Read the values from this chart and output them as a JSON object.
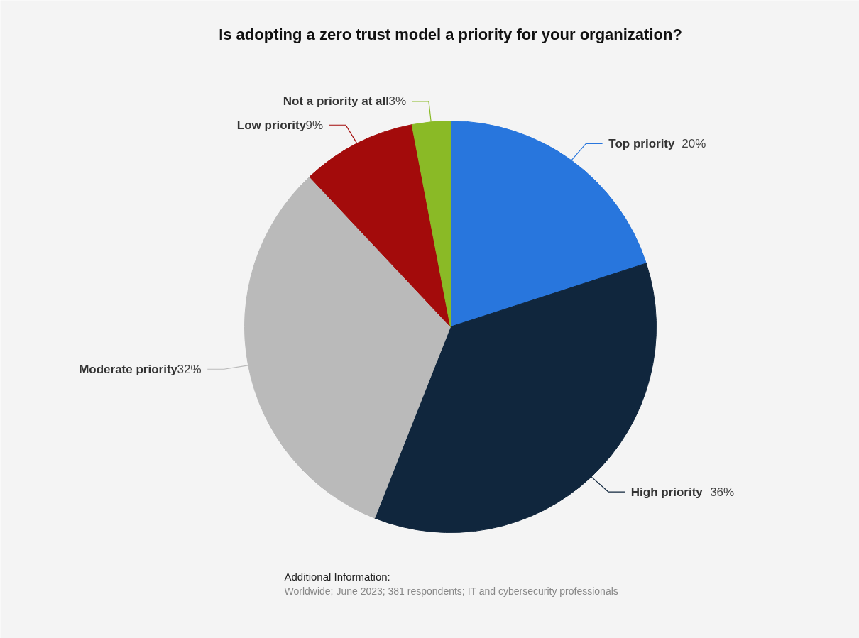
{
  "chart_data": {
    "type": "pie",
    "title": "Is adopting a zero trust model a priority for your organization?",
    "categories": [
      "Top priority",
      "High priority",
      "Moderate priority",
      "Low priority",
      "Not a priority at all"
    ],
    "values": [
      20,
      36,
      32,
      9,
      3
    ],
    "colors": [
      "#2876dd",
      "#10263d",
      "#bababa",
      "#a30b0b",
      "#8aba26"
    ],
    "value_labels": [
      "20%",
      "36%",
      "32%",
      "9%",
      "3%"
    ],
    "annotations": [
      "Additional Information:",
      "Worldwide; June 2023; 381 respondents; IT and cybersecurity professionals"
    ]
  }
}
